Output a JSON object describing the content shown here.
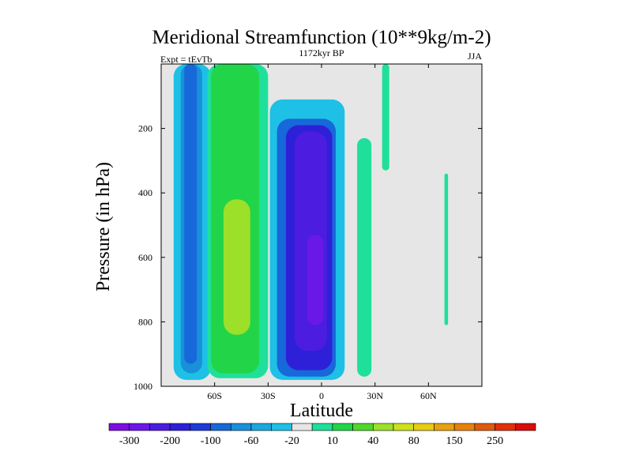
{
  "chart_data": {
    "type": "contour",
    "title": "Meridional Streamfunction (10**9kg/m-2)",
    "left_subtitle": "Expt = tEvTb",
    "center_subtitle": "1172kyr BP",
    "right_subtitle": "JJA",
    "xlabel": "Latitude",
    "ylabel": "Pressure (in hPa)",
    "x_range": [
      -90,
      90
    ],
    "y_range": [
      0,
      1000
    ],
    "y_reversed": true,
    "x_ticks": [
      {
        "value": -60,
        "label": "60S"
      },
      {
        "value": -30,
        "label": "30S"
      },
      {
        "value": 0,
        "label": "0"
      },
      {
        "value": 30,
        "label": "30N"
      },
      {
        "value": 60,
        "label": "60N"
      }
    ],
    "y_ticks": [
      {
        "value": 200,
        "label": "200"
      },
      {
        "value": 400,
        "label": "400"
      },
      {
        "value": 600,
        "label": "600"
      },
      {
        "value": 800,
        "label": "800"
      },
      {
        "value": 1000,
        "label": "1000"
      }
    ],
    "colorbar": {
      "colors": [
        "#7a10e0",
        "#6a18e8",
        "#4c1de0",
        "#2e20d8",
        "#1e3ad8",
        "#1768d8",
        "#1890da",
        "#1aa8de",
        "#1ec0e6",
        "#e6e6e6",
        "#1ee09a",
        "#22d448",
        "#4ed82a",
        "#9ce02a",
        "#cce21a",
        "#e6cc12",
        "#e8a210",
        "#e6820c",
        "#e05a0c",
        "#e0300c",
        "#d80c0c"
      ],
      "labels": [
        {
          "after_box": 1,
          "text": "-300"
        },
        {
          "after_box": 3,
          "text": "-200"
        },
        {
          "after_box": 5,
          "text": "-100"
        },
        {
          "after_box": 7,
          "text": "-60"
        },
        {
          "after_box": 9,
          "text": "-20"
        },
        {
          "after_box": 11,
          "text": "10"
        },
        {
          "after_box": 13,
          "text": "40"
        },
        {
          "after_box": 15,
          "text": "80"
        },
        {
          "after_box": 17,
          "text": "150"
        },
        {
          "after_box": 19,
          "text": "250"
        }
      ]
    },
    "fields": [
      {
        "name": "sh-ferrel-outer",
        "level": -20,
        "lat_range": [
          -83,
          -62
        ],
        "p_range": [
          0,
          980
        ]
      },
      {
        "name": "sh-ferrel-core",
        "level": -40,
        "lat_range": [
          -79,
          -67
        ],
        "p_range": [
          0,
          960
        ]
      },
      {
        "name": "sh-ferrel-inner",
        "level": -60,
        "lat_range": [
          -77,
          -70
        ],
        "p_range": [
          0,
          930
        ]
      },
      {
        "name": "sh-pos-outer",
        "level": 10,
        "lat_range": [
          -64,
          -30
        ],
        "p_range": [
          0,
          975
        ]
      },
      {
        "name": "sh-pos-mid",
        "level": 20,
        "lat_range": [
          -62,
          -35
        ],
        "p_range": [
          0,
          960
        ]
      },
      {
        "name": "sh-pos-core",
        "level": 40,
        "lat_range": [
          -55,
          -40
        ],
        "p_range": [
          420,
          840
        ]
      },
      {
        "name": "hadley-outer",
        "level": -20,
        "lat_range": [
          -29,
          13
        ],
        "p_range": [
          110,
          980
        ]
      },
      {
        "name": "hadley-60",
        "level": -60,
        "lat_range": [
          -25,
          8
        ],
        "p_range": [
          170,
          970
        ]
      },
      {
        "name": "hadley-100",
        "level": -100,
        "lat_range": [
          -20,
          6
        ],
        "p_range": [
          190,
          950
        ]
      },
      {
        "name": "hadley-200",
        "level": -200,
        "lat_range": [
          -15,
          3
        ],
        "p_range": [
          210,
          890
        ]
      },
      {
        "name": "hadley-300",
        "level": -300,
        "lat_range": [
          -8,
          1
        ],
        "p_range": [
          530,
          810
        ]
      },
      {
        "name": "nh-pos-cell",
        "level": 10,
        "lat_range": [
          20,
          28
        ],
        "p_range": [
          230,
          970
        ]
      },
      {
        "name": "nh-pos-top",
        "level": 10,
        "lat_range": [
          34,
          38
        ],
        "p_range": [
          0,
          330
        ]
      },
      {
        "name": "nh-pos-high",
        "level": 10,
        "lat_range": [
          69,
          71
        ],
        "p_range": [
          340,
          810
        ]
      }
    ]
  }
}
